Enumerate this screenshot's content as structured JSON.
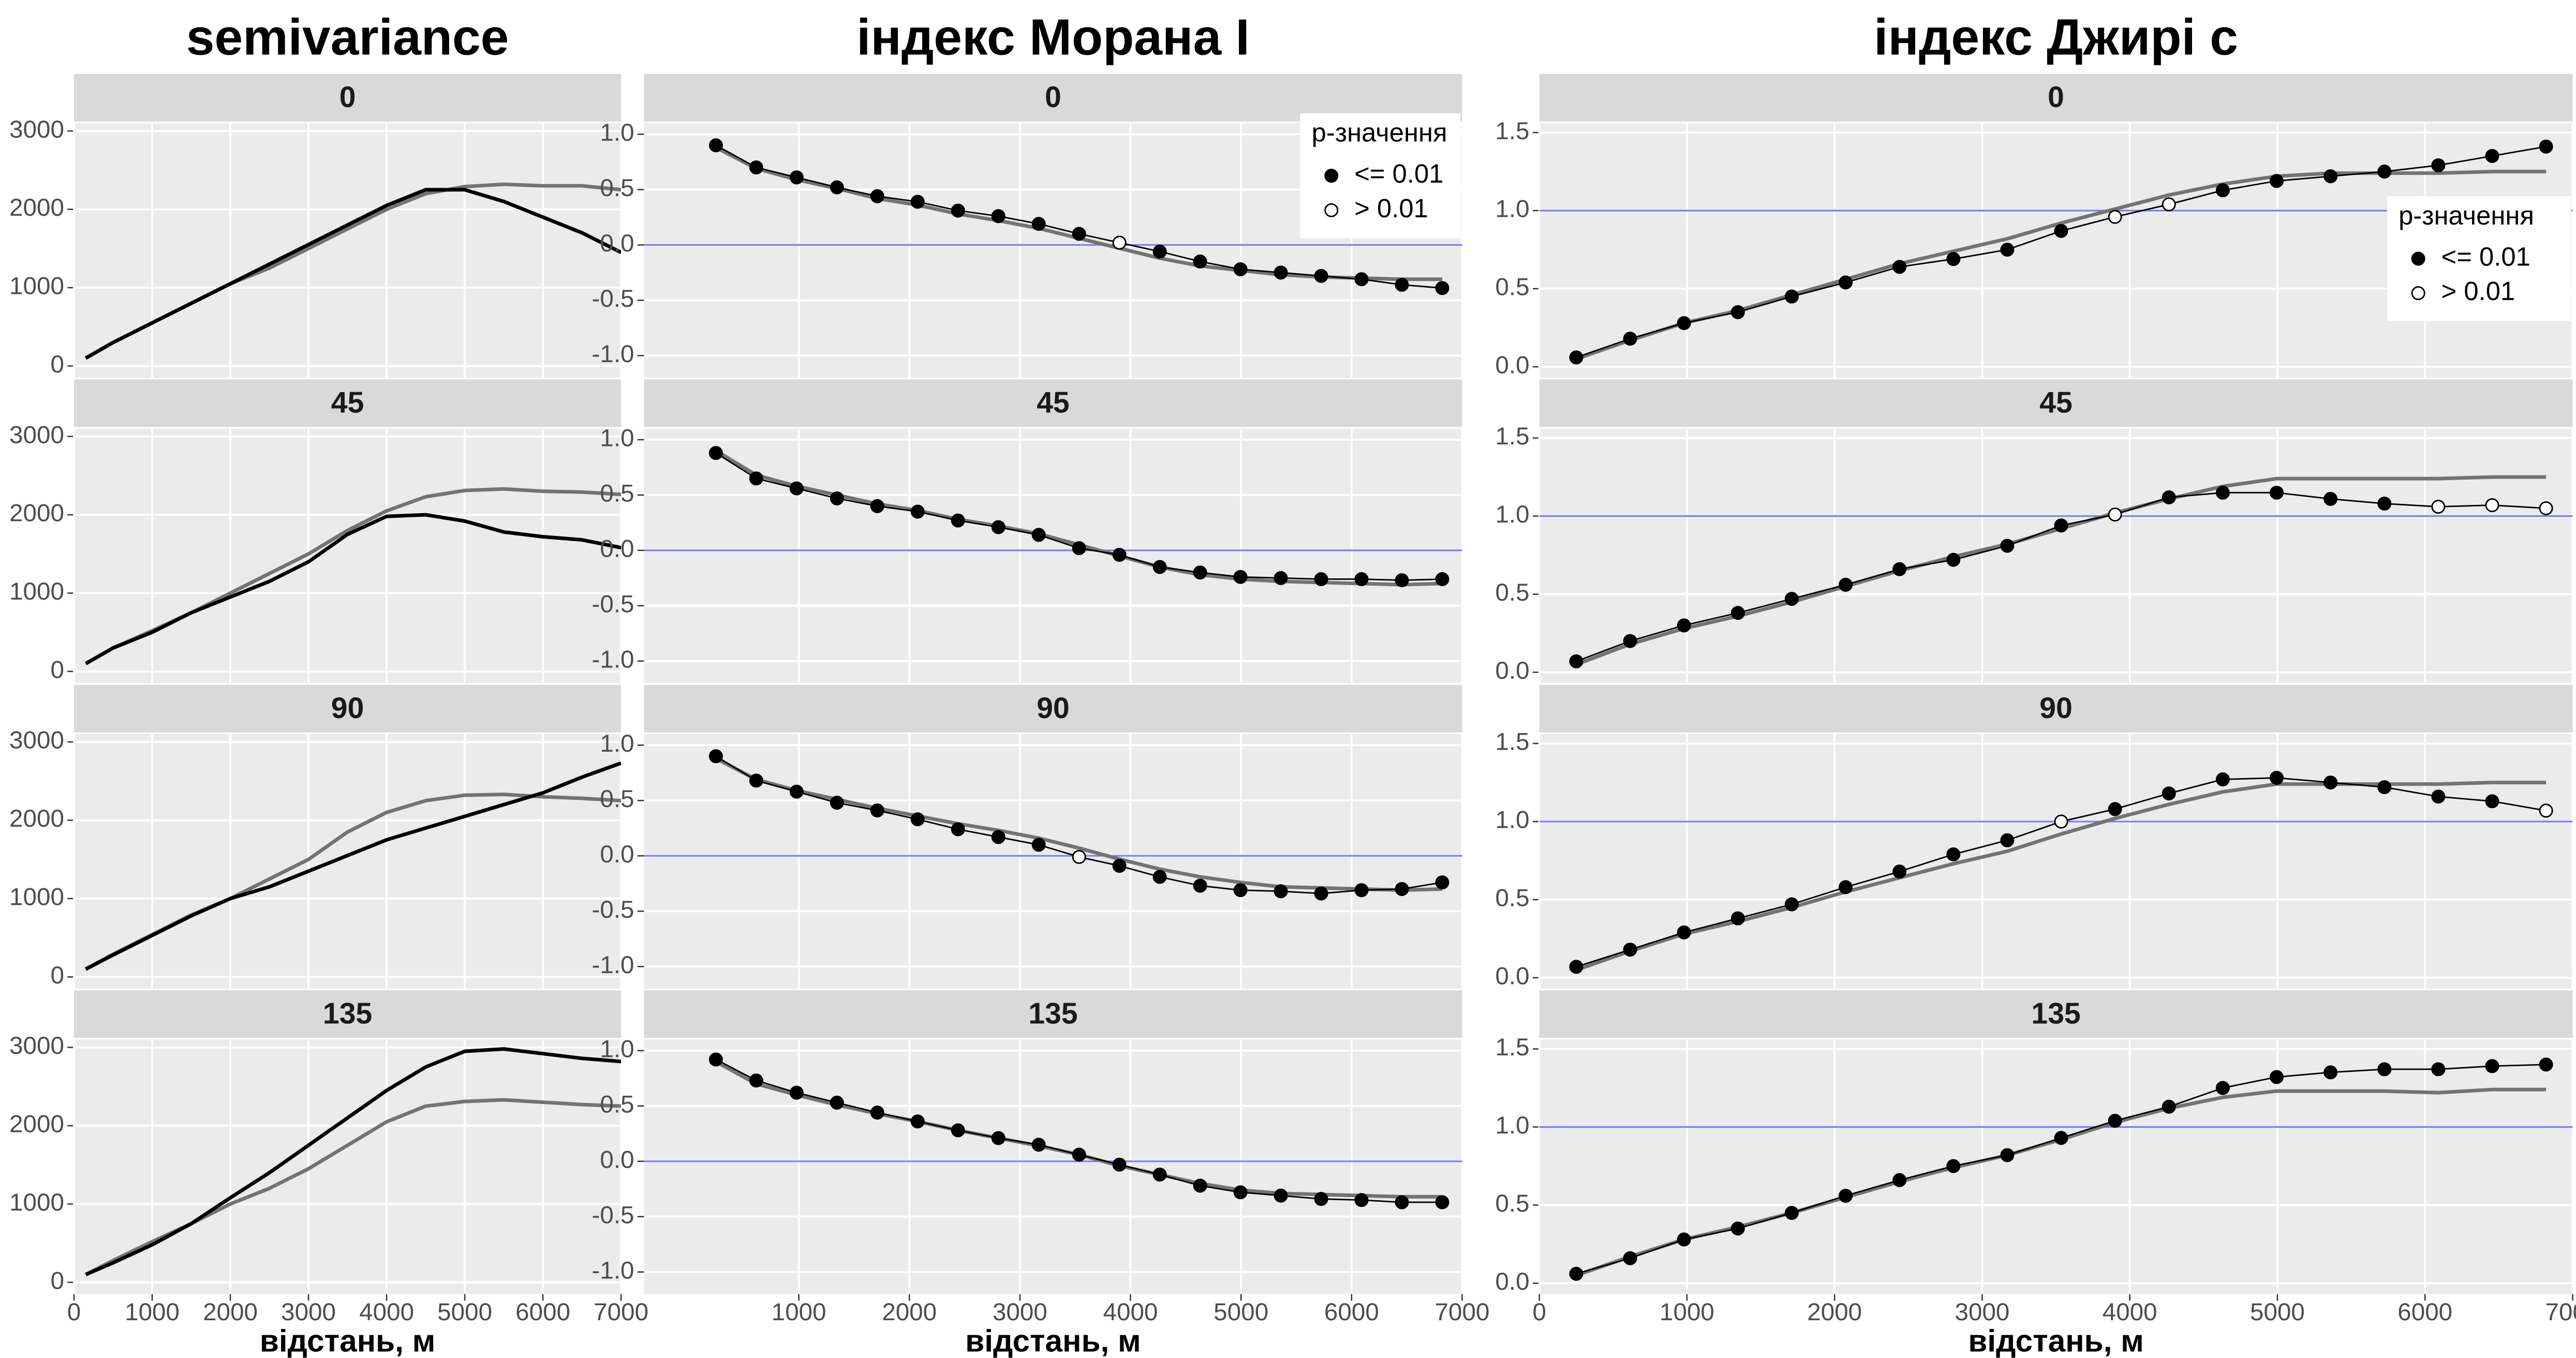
{
  "chart_data": [
    {
      "type": "line",
      "title": "semivariance",
      "x_label": "відстань, м",
      "xlim": [
        0,
        7000
      ],
      "xticks": [
        0,
        1000,
        2000,
        3000,
        4000,
        5000,
        6000,
        7000
      ],
      "ylim": [
        -150,
        3100
      ],
      "yticks": [
        0,
        1000,
        2000,
        3000
      ],
      "grid": true,
      "x": [
        150,
        500,
        1000,
        1500,
        2000,
        2500,
        3000,
        3500,
        4000,
        4500,
        5000,
        5500,
        6000,
        6500,
        7000
      ],
      "facets": [
        {
          "label": "0",
          "series": [
            {
              "color": "#737373",
              "values": [
                100,
                300,
                550,
                800,
                1050,
                1250,
                1500,
                1750,
                2000,
                2200,
                2290,
                2320,
                2300,
                2300,
                2250
              ]
            },
            {
              "color": "#000000",
              "values": [
                100,
                300,
                550,
                800,
                1050,
                1300,
                1550,
                1800,
                2050,
                2250,
                2250,
                2100,
                1900,
                1700,
                1450
              ]
            }
          ]
        },
        {
          "label": "45",
          "series": [
            {
              "color": "#737373",
              "values": [
                100,
                300,
                520,
                750,
                1000,
                1250,
                1500,
                1800,
                2050,
                2230,
                2310,
                2330,
                2300,
                2290,
                2260
              ]
            },
            {
              "color": "#000000",
              "values": [
                100,
                300,
                500,
                750,
                950,
                1150,
                1400,
                1750,
                1980,
                2000,
                1920,
                1780,
                1720,
                1680,
                1580
              ]
            }
          ]
        },
        {
          "label": "90",
          "series": [
            {
              "color": "#737373",
              "values": [
                100,
                290,
                540,
                790,
                1000,
                1250,
                1500,
                1850,
                2100,
                2250,
                2320,
                2330,
                2300,
                2280,
                2250
              ]
            },
            {
              "color": "#000000",
              "values": [
                100,
                280,
                530,
                780,
                1000,
                1150,
                1350,
                1550,
                1750,
                1900,
                2050,
                2200,
                2350,
                2550,
                2730
              ]
            }
          ]
        },
        {
          "label": "135",
          "series": [
            {
              "color": "#737373",
              "values": [
                100,
                280,
                520,
                750,
                1000,
                1200,
                1450,
                1750,
                2050,
                2250,
                2310,
                2330,
                2300,
                2270,
                2250
              ]
            },
            {
              "color": "#000000",
              "values": [
                100,
                250,
                480,
                750,
                1080,
                1400,
                1750,
                2100,
                2450,
                2750,
                2950,
                2980,
                2920,
                2860,
                2820
              ]
            }
          ]
        }
      ]
    },
    {
      "type": "line-points",
      "title": "індекс Морана I",
      "x_label": "відстань, м",
      "xlim": [
        -400,
        7000
      ],
      "xticks": [
        1000,
        2000,
        3000,
        4000,
        5000,
        6000,
        7000
      ],
      "ylim": [
        -1.2,
        1.1
      ],
      "yticks": [
        {
          "value": -1,
          "label": "-1.0"
        },
        -0.5,
        {
          "value": 0,
          "label": "0.0"
        },
        0.5,
        {
          "value": 1,
          "label": "1.0"
        }
      ],
      "grid": true,
      "hline": {
        "value": 0,
        "color": "#7b7bef"
      },
      "legend": {
        "title": "p-значення",
        "labels": [
          "<= 0.01",
          "> 0.01"
        ],
        "position": "top-right"
      },
      "x": [
        250,
        615,
        980,
        1345,
        1710,
        2075,
        2440,
        2805,
        3170,
        3535,
        3900,
        4265,
        4630,
        4995,
        5360,
        5725,
        6090,
        6455,
        6820
      ],
      "facets": [
        {
          "label": "0",
          "series": [
            {
              "color": "#737373",
              "values": [
                0.88,
                0.69,
                0.59,
                0.51,
                0.42,
                0.36,
                0.28,
                0.22,
                0.15,
                0.06,
                -0.03,
                -0.12,
                -0.19,
                -0.23,
                -0.27,
                -0.29,
                -0.3,
                -0.31,
                -0.31
              ]
            },
            {
              "color": "#000000",
              "values": [
                0.9,
                0.7,
                0.61,
                0.52,
                0.44,
                0.39,
                0.31,
                0.26,
                0.19,
                0.1,
                0.02,
                -0.06,
                -0.15,
                -0.22,
                -0.25,
                -0.28,
                -0.31,
                -0.36,
                -0.39
              ],
              "p_class": [
                0,
                0,
                0,
                0,
                0,
                0,
                0,
                0,
                0,
                0,
                1,
                0,
                0,
                0,
                0,
                0,
                0,
                0,
                0
              ]
            }
          ]
        },
        {
          "label": "45",
          "series": [
            {
              "color": "#737373",
              "values": [
                0.9,
                0.68,
                0.58,
                0.5,
                0.42,
                0.36,
                0.28,
                0.22,
                0.15,
                0.05,
                -0.05,
                -0.15,
                -0.22,
                -0.26,
                -0.28,
                -0.29,
                -0.3,
                -0.31,
                -0.3
              ]
            },
            {
              "color": "#000000",
              "values": [
                0.88,
                0.65,
                0.56,
                0.47,
                0.4,
                0.35,
                0.27,
                0.21,
                0.14,
                0.02,
                -0.04,
                -0.15,
                -0.2,
                -0.24,
                -0.25,
                -0.26,
                -0.26,
                -0.27,
                -0.26
              ],
              "p_class": [
                0,
                0,
                0,
                0,
                0,
                0,
                0,
                0,
                0,
                0,
                0,
                0,
                0,
                0,
                0,
                0,
                0,
                0,
                0
              ]
            }
          ]
        },
        {
          "label": "90",
          "series": [
            {
              "color": "#737373",
              "values": [
                0.88,
                0.69,
                0.59,
                0.51,
                0.43,
                0.36,
                0.29,
                0.23,
                0.16,
                0.07,
                -0.03,
                -0.12,
                -0.19,
                -0.24,
                -0.28,
                -0.29,
                -0.3,
                -0.31,
                -0.3
              ]
            },
            {
              "color": "#000000",
              "values": [
                0.9,
                0.68,
                0.58,
                0.48,
                0.41,
                0.33,
                0.24,
                0.17,
                0.1,
                -0.01,
                -0.09,
                -0.19,
                -0.27,
                -0.31,
                -0.32,
                -0.34,
                -0.31,
                -0.3,
                -0.24
              ],
              "p_class": [
                0,
                0,
                0,
                0,
                0,
                0,
                0,
                0,
                0,
                1,
                0,
                0,
                0,
                0,
                0,
                0,
                0,
                0,
                0
              ]
            }
          ]
        },
        {
          "label": "135",
          "series": [
            {
              "color": "#737373",
              "values": [
                0.9,
                0.7,
                0.6,
                0.51,
                0.43,
                0.36,
                0.28,
                0.21,
                0.14,
                0.06,
                -0.04,
                -0.12,
                -0.2,
                -0.26,
                -0.29,
                -0.3,
                -0.31,
                -0.32,
                -0.32
              ]
            },
            {
              "color": "#000000",
              "values": [
                0.92,
                0.73,
                0.62,
                0.53,
                0.44,
                0.36,
                0.28,
                0.21,
                0.15,
                0.06,
                -0.03,
                -0.12,
                -0.22,
                -0.28,
                -0.31,
                -0.34,
                -0.35,
                -0.37,
                -0.37
              ],
              "p_class": [
                0,
                0,
                0,
                0,
                0,
                0,
                0,
                0,
                0,
                0,
                0,
                0,
                0,
                0,
                0,
                0,
                0,
                0,
                0
              ]
            }
          ]
        }
      ]
    },
    {
      "type": "line-points",
      "title": "індекс Джирі c",
      "x_label": "відстань, м",
      "xlim": [
        0,
        7000
      ],
      "xticks": [
        0,
        1000,
        2000,
        3000,
        4000,
        5000,
        6000,
        7000
      ],
      "ylim": [
        -0.07,
        1.56
      ],
      "yticks": [
        {
          "value": 0,
          "label": "0.0"
        },
        0.5,
        {
          "value": 1,
          "label": "1.0"
        },
        1.5
      ],
      "grid": true,
      "hline": {
        "value": 1,
        "color": "#7b7bef"
      },
      "legend": {
        "title": "p-значення",
        "labels": [
          "<= 0.01",
          "> 0.01"
        ],
        "position": "right"
      },
      "x": [
        250,
        615,
        980,
        1345,
        1710,
        2075,
        2440,
        2805,
        3170,
        3535,
        3900,
        4265,
        4630,
        4995,
        5360,
        5725,
        6090,
        6455,
        6820
      ],
      "facets": [
        {
          "label": "0",
          "series": [
            {
              "color": "#737373",
              "values": [
                0.05,
                0.17,
                0.28,
                0.36,
                0.46,
                0.56,
                0.66,
                0.74,
                0.82,
                0.92,
                1.01,
                1.1,
                1.17,
                1.22,
                1.24,
                1.24,
                1.24,
                1.25,
                1.25
              ]
            },
            {
              "color": "#000000",
              "values": [
                0.06,
                0.18,
                0.28,
                0.35,
                0.45,
                0.54,
                0.64,
                0.69,
                0.75,
                0.87,
                0.96,
                1.04,
                1.13,
                1.19,
                1.22,
                1.25,
                1.29,
                1.35,
                1.41
              ],
              "p_class": [
                0,
                0,
                0,
                0,
                0,
                0,
                0,
                0,
                0,
                0,
                1,
                1,
                0,
                0,
                0,
                0,
                0,
                0,
                0
              ]
            }
          ]
        },
        {
          "label": "45",
          "series": [
            {
              "color": "#737373",
              "values": [
                0.05,
                0.18,
                0.28,
                0.36,
                0.45,
                0.55,
                0.65,
                0.74,
                0.82,
                0.92,
                1.02,
                1.11,
                1.19,
                1.24,
                1.24,
                1.24,
                1.24,
                1.25,
                1.25
              ]
            },
            {
              "color": "#000000",
              "values": [
                0.07,
                0.2,
                0.3,
                0.38,
                0.47,
                0.56,
                0.66,
                0.72,
                0.81,
                0.94,
                1.01,
                1.12,
                1.15,
                1.15,
                1.11,
                1.08,
                1.06,
                1.07,
                1.05
              ],
              "p_class": [
                0,
                0,
                0,
                0,
                0,
                0,
                0,
                0,
                0,
                0,
                1,
                0,
                0,
                0,
                0,
                0,
                1,
                1,
                1
              ]
            }
          ]
        },
        {
          "label": "90",
          "series": [
            {
              "color": "#737373",
              "values": [
                0.05,
                0.17,
                0.28,
                0.36,
                0.45,
                0.55,
                0.64,
                0.73,
                0.81,
                0.92,
                1.02,
                1.11,
                1.19,
                1.24,
                1.24,
                1.24,
                1.24,
                1.25,
                1.25
              ]
            },
            {
              "color": "#000000",
              "values": [
                0.07,
                0.18,
                0.29,
                0.38,
                0.47,
                0.58,
                0.68,
                0.79,
                0.88,
                1.0,
                1.08,
                1.18,
                1.27,
                1.28,
                1.25,
                1.22,
                1.16,
                1.13,
                1.07
              ],
              "p_class": [
                0,
                0,
                0,
                0,
                0,
                0,
                0,
                0,
                0,
                1,
                0,
                0,
                0,
                0,
                0,
                0,
                0,
                0,
                1
              ]
            }
          ]
        },
        {
          "label": "135",
          "series": [
            {
              "color": "#737373",
              "values": [
                0.05,
                0.17,
                0.28,
                0.36,
                0.45,
                0.55,
                0.65,
                0.74,
                0.82,
                0.92,
                1.03,
                1.12,
                1.19,
                1.23,
                1.23,
                1.23,
                1.22,
                1.24,
                1.24
              ]
            },
            {
              "color": "#000000",
              "values": [
                0.06,
                0.16,
                0.28,
                0.35,
                0.45,
                0.56,
                0.66,
                0.75,
                0.82,
                0.93,
                1.04,
                1.13,
                1.25,
                1.32,
                1.35,
                1.37,
                1.37,
                1.39,
                1.4
              ],
              "p_class": [
                0,
                0,
                0,
                0,
                0,
                0,
                0,
                0,
                0,
                0,
                0,
                0,
                0,
                0,
                0,
                0,
                0,
                0,
                0
              ]
            }
          ]
        }
      ]
    }
  ]
}
